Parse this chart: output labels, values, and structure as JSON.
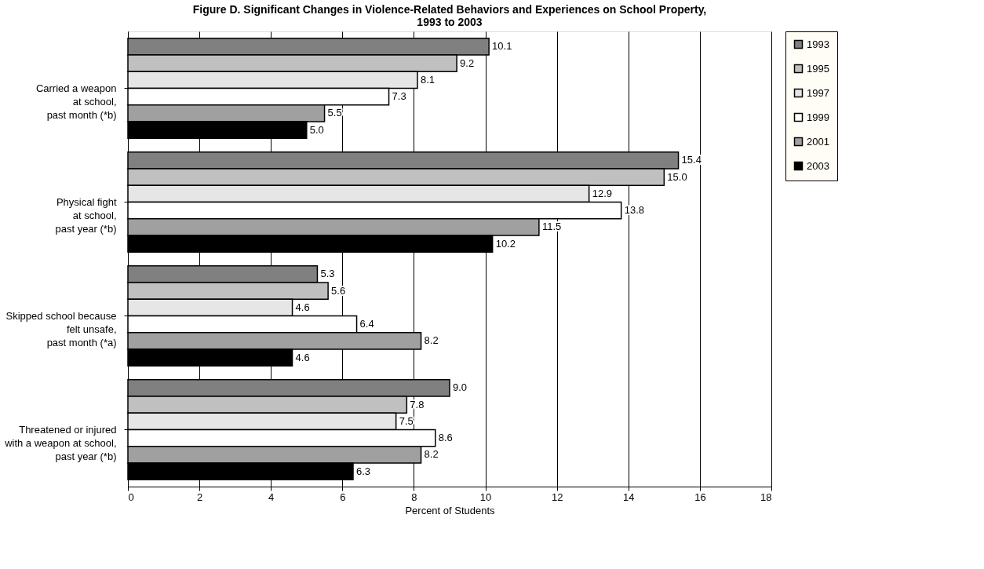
{
  "chart_data": {
    "type": "bar",
    "orientation": "horizontal",
    "title": "Figure D. Significant Changes in Violence-Related Behaviors and Experiences on School Property,\n1993 to 2003",
    "xlabel": "Percent  of Students",
    "categories": [
      "Carried a weapon\nat school,\npast month (*b)",
      "Physical fight\nat school,\npast year (*b)",
      "Skipped school because\nfelt unsafe,\npast month (*a)",
      "Threatened or injured\nwith a weapon at school,\npast year (*b)"
    ],
    "series": [
      {
        "name": "1993",
        "color": "#808080",
        "values": [
          10.1,
          15.4,
          5.3,
          9.0
        ]
      },
      {
        "name": "1995",
        "color": "#c0c0c0",
        "values": [
          9.2,
          15.0,
          5.6,
          7.8
        ]
      },
      {
        "name": "1997",
        "color": "#e6e6e6",
        "values": [
          8.1,
          12.9,
          4.6,
          7.5
        ]
      },
      {
        "name": "1999",
        "color": "#ffffff",
        "values": [
          7.3,
          13.8,
          6.4,
          8.6
        ]
      },
      {
        "name": "2001",
        "color": "#a0a0a0",
        "values": [
          5.5,
          11.5,
          8.2,
          8.2
        ]
      },
      {
        "name": "2003",
        "color": "#000000",
        "values": [
          5.0,
          10.2,
          4.6,
          6.3
        ]
      }
    ],
    "xlim": [
      0,
      18
    ],
    "xticks": [
      0,
      2,
      4,
      6,
      8,
      10,
      12,
      14,
      16,
      18
    ],
    "value_labels": [
      [
        "10.1",
        "9.2",
        "8.1",
        "7.3",
        "5.5",
        "5.0"
      ],
      [
        "15.4",
        "15.0",
        "12.9",
        "13.8",
        "11.5",
        "10.2"
      ],
      [
        "5.3",
        "5.6",
        "4.6",
        "6.4",
        "8.2",
        "4.6"
      ],
      [
        "9.0",
        "7.8",
        "7.5",
        "8.6",
        "8.2",
        "6.3"
      ]
    ],
    "grid": "x",
    "legend": "right"
  }
}
